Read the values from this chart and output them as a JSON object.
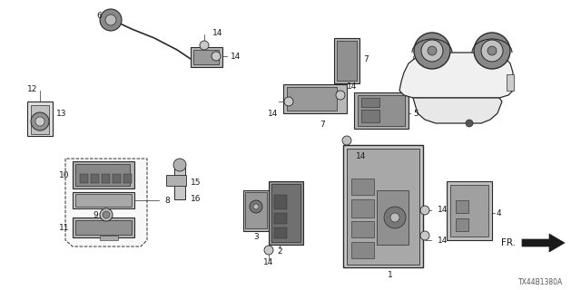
{
  "bg_color": "#ffffff",
  "diagram_code": "TX44B1380A",
  "line_color": "#2a2a2a",
  "text_color": "#1a1a1a",
  "font_size": 6.5
}
